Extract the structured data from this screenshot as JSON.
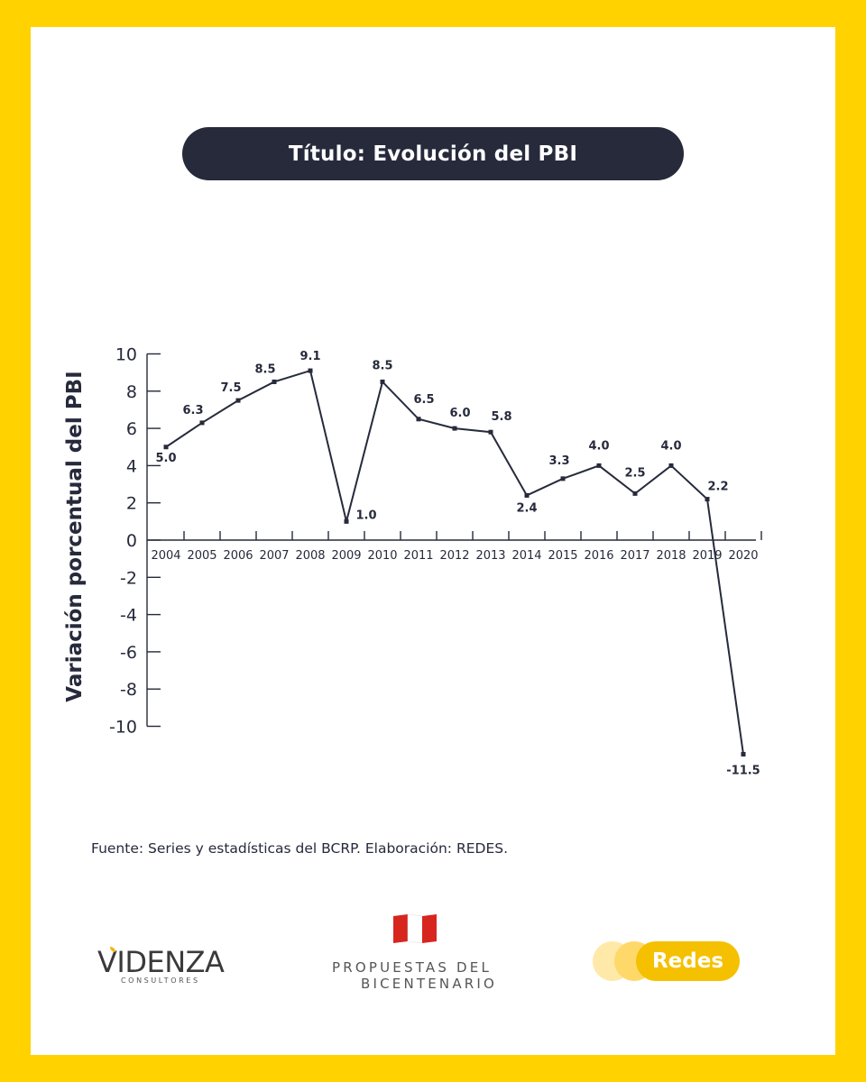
{
  "title": "Título: Evolución del PBI",
  "source": "Fuente: Series y estadísticas del BCRP. Elaboración: REDES.",
  "colors": {
    "frame": "#FFD200",
    "title_bg": "#262a3b",
    "line": "#262a3b"
  },
  "logos": {
    "videnza": {
      "name": "VIDENZA",
      "sub": "CONSULTORES"
    },
    "bicentenario": {
      "line1": "PROPUESTAS DEL",
      "line2": "BICENTENARIO"
    },
    "redes": {
      "label": "Redes"
    }
  },
  "chart_data": {
    "type": "line",
    "ylabel": "Variación porcentual del PBI",
    "xlabel": "",
    "ylim": [
      -10,
      10
    ],
    "yticks": [
      10,
      8,
      6,
      4,
      2,
      0,
      -2,
      -4,
      -6,
      -8,
      -10
    ],
    "grid": false,
    "categories": [
      "2004",
      "2005",
      "2006",
      "2007",
      "2008",
      "2009",
      "2010",
      "2011",
      "2012",
      "2013",
      "2014",
      "2015",
      "2016",
      "2017",
      "2018",
      "2019",
      "2020"
    ],
    "series": [
      {
        "values": [
          5.0,
          6.3,
          7.5,
          8.5,
          9.1,
          1.0,
          8.5,
          6.5,
          6.0,
          5.8,
          2.4,
          3.3,
          4.0,
          2.5,
          4.0,
          2.2,
          -11.5
        ]
      }
    ],
    "data_labels": [
      "5.0",
      "6.3",
      "7.5",
      "8.5",
      "9.1",
      "1.0",
      "8.5",
      "6.5",
      "6.0",
      "5.8",
      "2.4",
      "3.3",
      "4.0",
      "2.5",
      "4.0",
      "2.2",
      "-11.5"
    ]
  }
}
